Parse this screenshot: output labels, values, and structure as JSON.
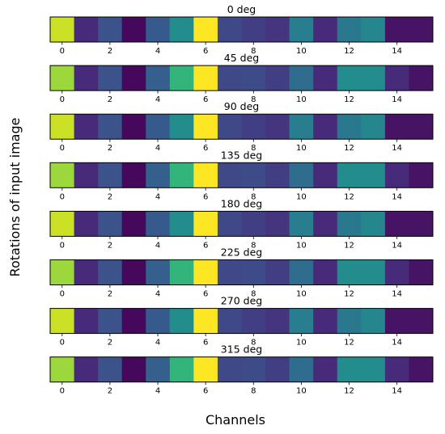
{
  "figure": {
    "ylabel": "Rotations of input image",
    "xlabel": "Channels"
  },
  "chart_data": {
    "type": "heatmap",
    "colormap": "viridis",
    "vmin": 0,
    "vmax": 1,
    "xlim": [
      -0.5,
      15.5
    ],
    "xticks": [
      0,
      2,
      4,
      6,
      8,
      10,
      12,
      14
    ],
    "ylabel": "Rotations of input image",
    "xlabel": "Channels",
    "rows": [
      {
        "title": "0 deg",
        "values": [
          0.92,
          0.12,
          0.25,
          0.02,
          0.28,
          0.48,
          1.0,
          0.22,
          0.18,
          0.15,
          0.42,
          0.12,
          0.4,
          0.46,
          0.05,
          0.05
        ]
      },
      {
        "title": "45 deg",
        "values": [
          0.85,
          0.12,
          0.25,
          0.02,
          0.3,
          0.65,
          1.0,
          0.22,
          0.23,
          0.18,
          0.35,
          0.12,
          0.48,
          0.48,
          0.12,
          0.05
        ]
      },
      {
        "title": "90 deg",
        "values": [
          0.92,
          0.12,
          0.25,
          0.02,
          0.28,
          0.48,
          1.0,
          0.22,
          0.18,
          0.15,
          0.42,
          0.12,
          0.4,
          0.46,
          0.05,
          0.05
        ]
      },
      {
        "title": "135 deg",
        "values": [
          0.85,
          0.12,
          0.25,
          0.02,
          0.3,
          0.65,
          1.0,
          0.22,
          0.23,
          0.18,
          0.35,
          0.12,
          0.48,
          0.48,
          0.12,
          0.05
        ]
      },
      {
        "title": "180 deg",
        "values": [
          0.92,
          0.12,
          0.25,
          0.02,
          0.28,
          0.48,
          1.0,
          0.22,
          0.18,
          0.15,
          0.42,
          0.12,
          0.4,
          0.46,
          0.05,
          0.05
        ]
      },
      {
        "title": "225 deg",
        "values": [
          0.85,
          0.12,
          0.25,
          0.02,
          0.3,
          0.65,
          1.0,
          0.22,
          0.23,
          0.18,
          0.35,
          0.12,
          0.48,
          0.48,
          0.12,
          0.05
        ]
      },
      {
        "title": "270 deg",
        "values": [
          0.92,
          0.12,
          0.25,
          0.02,
          0.28,
          0.48,
          1.0,
          0.22,
          0.18,
          0.15,
          0.42,
          0.12,
          0.4,
          0.46,
          0.05,
          0.05
        ]
      },
      {
        "title": "315 deg",
        "values": [
          0.85,
          0.12,
          0.25,
          0.02,
          0.3,
          0.65,
          1.0,
          0.22,
          0.23,
          0.18,
          0.35,
          0.12,
          0.48,
          0.48,
          0.12,
          0.05
        ]
      }
    ]
  }
}
